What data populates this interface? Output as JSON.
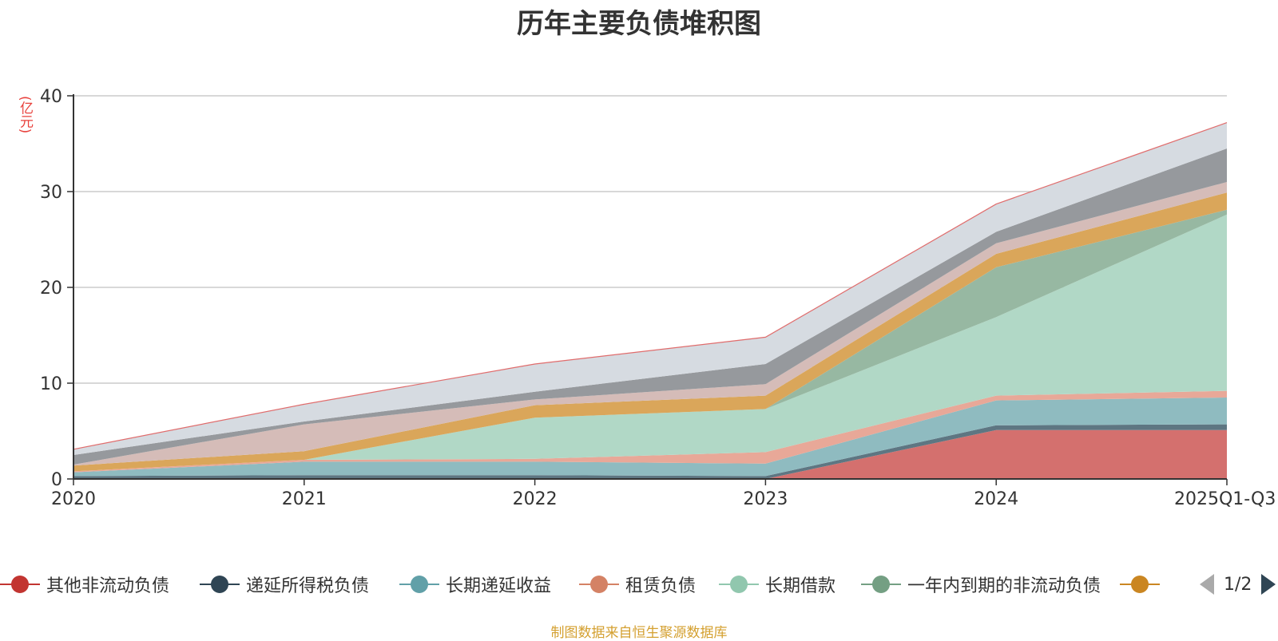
{
  "title": "历年主要负债堆积图",
  "unit_label": "(亿元)",
  "footer": "制图数据来自恒生聚源数据库",
  "pager": {
    "text": "1/2"
  },
  "legend": [
    {
      "name": "其他非流动负债",
      "color": "#c23531"
    },
    {
      "name": "递延所得税负债",
      "color": "#2f4554"
    },
    {
      "name": "长期递延收益",
      "color": "#61a0a8"
    },
    {
      "name": "租赁负债",
      "color": "#d48265"
    },
    {
      "name": "长期借款",
      "color": "#91c7ae"
    },
    {
      "name": "一年内到期的非流动负债",
      "color": "#749f83"
    },
    {
      "name": "",
      "color": "#ca8622"
    }
  ],
  "chart_data": {
    "type": "area",
    "stacked": true,
    "categories": [
      "2020",
      "2021",
      "2022",
      "2023",
      "2024",
      "2025Q1-Q3"
    ],
    "ylim": [
      0,
      40
    ],
    "yticks": [
      0,
      10,
      20,
      30,
      40
    ],
    "ylabel": "(亿元)",
    "grid": true,
    "legend_position": "bottom",
    "series": [
      {
        "name": "其他非流动负债",
        "color": "#d4706e",
        "values": [
          0,
          0,
          0,
          0,
          5.1,
          5.1
        ]
      },
      {
        "name": "递延所得税负债",
        "color": "#5e7682",
        "values": [
          0.3,
          0.4,
          0.4,
          0.3,
          0.5,
          0.6
        ]
      },
      {
        "name": "长期递延收益",
        "color": "#8fbbc0",
        "values": [
          0.4,
          1.4,
          1.4,
          1.3,
          2.6,
          2.8
        ]
      },
      {
        "name": "租赁负债",
        "color": "#e8a898",
        "values": [
          0.1,
          0.2,
          0.3,
          1.2,
          0.5,
          0.7
        ]
      },
      {
        "name": "长期借款",
        "color": "#b1d8c6",
        "values": [
          0,
          0,
          4.3,
          4.5,
          8.2,
          18.4
        ]
      },
      {
        "name": "一年内到期的非流动负债",
        "color": "#97b8a2",
        "values": [
          0,
          0,
          0,
          0,
          5.2,
          0.5
        ]
      },
      {
        "name": "",
        "color": "#daa65a",
        "values": [
          0.6,
          0.9,
          1.3,
          1.4,
          1.4,
          1.8
        ]
      },
      {
        "name": "",
        "color": "#d5bcb8",
        "values": [
          0.1,
          2.8,
          0.6,
          1.2,
          1.1,
          1.1
        ]
      },
      {
        "name": "",
        "color": "#96999d",
        "values": [
          1.0,
          0.3,
          0.8,
          2.1,
          1.2,
          3.5
        ]
      },
      {
        "name": "",
        "color": "#d6dbe1",
        "values": [
          0.6,
          1.8,
          2.9,
          2.8,
          2.9,
          2.7
        ]
      }
    ]
  }
}
